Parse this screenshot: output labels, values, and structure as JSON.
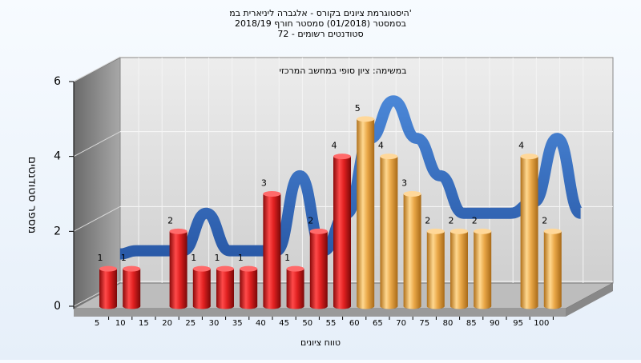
{
  "chart_data": {
    "type": "bar",
    "title_lines": [
      "היסטוגרמת ציונים בקורס - אלגברה ליניארית במ'",
      "בסמסטר  (01/2018)  סמסטר חורף  2018/19",
      "סטודנטים רשומים - 72"
    ],
    "subtitle": "במשימה: ציון סופי במחשב המרכזי",
    "xlabel": "טווח ציונים",
    "ylabel": "מספר סטודנטים",
    "ylim": [
      0,
      6
    ],
    "y_ticks": [
      "0",
      "2",
      "4",
      "6"
    ],
    "grid": true,
    "x": [
      "5",
      "10",
      "15",
      "20",
      "25",
      "30",
      "35",
      "40",
      "45",
      "50",
      "55",
      "60",
      "65",
      "70",
      "75",
      "80",
      "85",
      "90",
      "95",
      "100"
    ],
    "values": [
      1,
      1,
      null,
      2,
      1,
      1,
      1,
      3,
      1,
      2,
      4,
      5,
      4,
      3,
      2,
      2,
      2,
      null,
      4,
      2
    ],
    "value_labels": [
      "1",
      "1",
      "",
      "2",
      "1",
      "1",
      "1",
      "3",
      "1",
      "2",
      "4",
      "5",
      "4",
      "3",
      "2",
      "2",
      "2",
      "",
      "4",
      "2"
    ],
    "series_colors": {
      "failing": "#d42020",
      "passing": "#e8a840",
      "curve": "#3a6fc0"
    },
    "failing_up_to": 55
  }
}
